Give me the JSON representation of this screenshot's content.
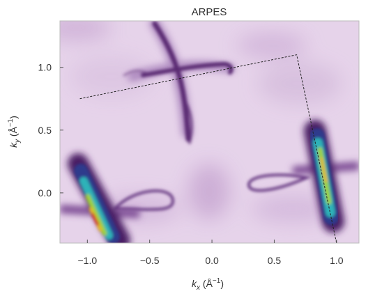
{
  "chart_data": {
    "type": "heatmap",
    "title": "ARPES",
    "xlabel": {
      "main": "k",
      "sub": "x",
      "unit": " (Å",
      "sup": "−1",
      "close": ")"
    },
    "ylabel": {
      "main": "k",
      "sub": "y",
      "unit": " (Å",
      "sup": "−1",
      "close": ")"
    },
    "xlim": [
      -1.22,
      1.18
    ],
    "ylim": [
      -0.4,
      1.37
    ],
    "xticks": [
      -1.0,
      -0.5,
      0.0,
      0.5,
      1.0
    ],
    "xtick_labels": [
      "−1.0",
      "−0.5",
      "0.0",
      "0.5",
      "1.0"
    ],
    "yticks": [
      0.0,
      0.5,
      1.0
    ],
    "ytick_labels": [
      "0.0",
      "0.5",
      "1.0"
    ],
    "colormap": [
      "#f2e6f4",
      "#e2cfe7",
      "#c4a3cf",
      "#8a5ba0",
      "#4a1f63",
      "#3b5db8",
      "#2fb2b8",
      "#9fd23a",
      "#e8b52a",
      "#d6262b"
    ],
    "brillouin_zone": {
      "style": "dashed",
      "corners": [
        [
          -1.06,
          0.75
        ],
        [
          0.68,
          1.1
        ],
        [
          1.0,
          -0.4
        ],
        [
          -1.06,
          -0.4
        ]
      ]
    },
    "features": [
      {
        "name": "center-cross",
        "intensity": "medium"
      },
      {
        "name": "left-pocket",
        "intensity": "high"
      },
      {
        "name": "right-pocket",
        "intensity": "high"
      },
      {
        "name": "left-loop",
        "intensity": "medium"
      },
      {
        "name": "right-loop",
        "intensity": "medium"
      }
    ]
  }
}
